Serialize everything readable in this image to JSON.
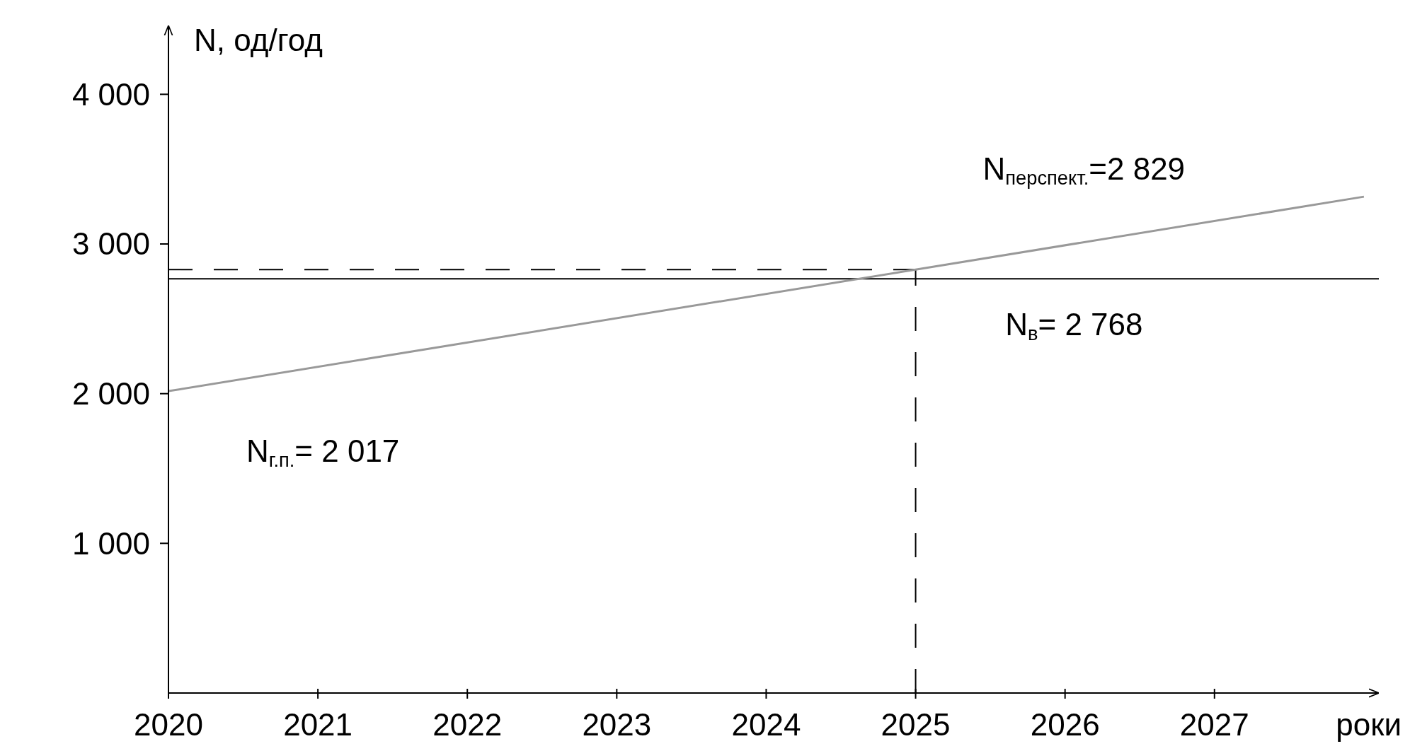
{
  "chart_data": {
    "type": "line",
    "xlabel": "роки",
    "ylabel": "N, од/год",
    "x": [
      2020,
      2025,
      2028
    ],
    "series": [
      {
        "color": "#999999",
        "values": [
          2017,
          2829,
          3316
        ]
      }
    ],
    "xlim": [
      2020,
      2028.1
    ],
    "ylim": [
      0,
      4460
    ],
    "xticks": [
      2020,
      2021,
      2022,
      2023,
      2024,
      2025,
      2026,
      2027
    ],
    "yticks": [
      {
        "value": 1000,
        "label": "1 000"
      },
      {
        "value": 2000,
        "label": "2 000"
      },
      {
        "value": 3000,
        "label": "3 000"
      },
      {
        "value": 4000,
        "label": "4 000"
      }
    ],
    "ref_lines": [
      {
        "axis": "y",
        "value": 2768,
        "label": "N$_{в}$= 2 768",
        "color": "#000000",
        "line_style": "solid"
      },
      {
        "axis": "y",
        "value": 2829,
        "color": "#000000",
        "line_style": "dashed"
      },
      {
        "axis": "x",
        "value": 2025,
        "color": "#000000",
        "line_style": "dashed"
      }
    ],
    "annotations": [
      {
        "text": "N$_{г.п.}$= 2 017",
        "x": 2020,
        "y": 2017
      },
      "N$_{перспект.}$=2 829"
    ],
    "grid": false,
    "marker": "none",
    "line_style": "solid"
  }
}
